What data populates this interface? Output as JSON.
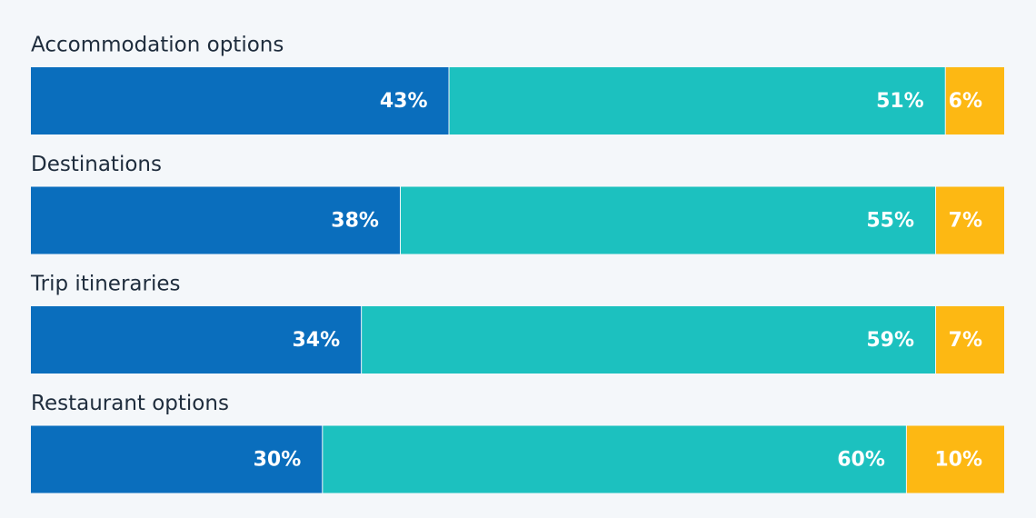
{
  "chart_data": {
    "type": "stacked-bar",
    "categories": [
      "Accommodation options",
      "Destinations",
      "Trip itineraries",
      "Restaurant options"
    ],
    "series": [
      {
        "color": "#0a6ebd",
        "values": [
          43,
          38,
          34,
          30
        ],
        "value_labels": [
          "43%",
          "38%",
          "34%",
          "30%"
        ]
      },
      {
        "color": "#1cc1bf",
        "values": [
          51,
          55,
          59,
          60
        ],
        "value_labels": [
          "51%",
          "55%",
          "59%",
          "60%"
        ]
      },
      {
        "color": "#fdb813",
        "values": [
          6,
          7,
          7,
          10
        ],
        "value_labels": [
          "6%",
          "7%",
          "7%",
          "10%"
        ]
      }
    ],
    "xlim": [
      0,
      100
    ]
  }
}
